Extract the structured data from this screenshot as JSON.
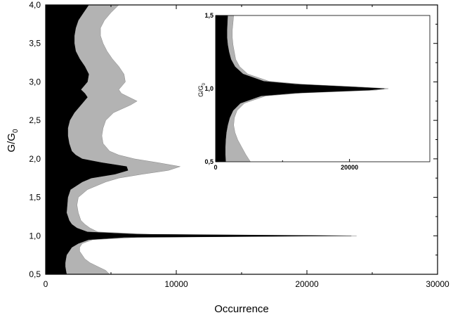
{
  "chart_data": [
    {
      "type": "area",
      "orientation": "horizontal",
      "xlabel": "Occurrence",
      "ylabel": "G/G",
      "ylabel_subscript": "0",
      "xlim": [
        0,
        30000
      ],
      "ylim": [
        0.5,
        4.0
      ],
      "x_ticks": [
        0,
        10000,
        20000,
        30000
      ],
      "x_tick_labels": [
        "0",
        "10000",
        "20000",
        "30000"
      ],
      "y_ticks": [
        0.5,
        1.0,
        1.5,
        2.0,
        2.5,
        3.0,
        3.5,
        4.0
      ],
      "y_tick_labels": [
        "0,5",
        "1,0",
        "1,5",
        "2,0",
        "2,5",
        "3,0",
        "3,5",
        "4,0"
      ],
      "grid": false,
      "colors": {
        "dark": "#000000",
        "light": "#b3b3b3"
      },
      "series": [
        {
          "color": "#b3b3b3",
          "points": [
            [
              0.5,
              4900
            ],
            [
              0.55,
              4600
            ],
            [
              0.6,
              4000
            ],
            [
              0.65,
              3400
            ],
            [
              0.7,
              3000
            ],
            [
              0.75,
              2800
            ],
            [
              0.8,
              2600
            ],
            [
              0.85,
              2600
            ],
            [
              0.9,
              2800
            ],
            [
              0.95,
              3600
            ],
            [
              0.98,
              7000
            ],
            [
              1.0,
              23800
            ],
            [
              1.02,
              8000
            ],
            [
              1.05,
              4000
            ],
            [
              1.1,
              3400
            ],
            [
              1.15,
              3000
            ],
            [
              1.2,
              2700
            ],
            [
              1.3,
              2500
            ],
            [
              1.4,
              2400
            ],
            [
              1.5,
              2500
            ],
            [
              1.6,
              3200
            ],
            [
              1.7,
              4600
            ],
            [
              1.75,
              5600
            ],
            [
              1.8,
              7400
            ],
            [
              1.85,
              9400
            ],
            [
              1.9,
              10300
            ],
            [
              1.95,
              8600
            ],
            [
              2.0,
              6800
            ],
            [
              2.05,
              5600
            ],
            [
              2.1,
              4900
            ],
            [
              2.2,
              4400
            ],
            [
              2.3,
              4300
            ],
            [
              2.4,
              4400
            ],
            [
              2.5,
              4600
            ],
            [
              2.6,
              5200
            ],
            [
              2.7,
              6500
            ],
            [
              2.75,
              7000
            ],
            [
              2.8,
              6400
            ],
            [
              2.85,
              5800
            ],
            [
              2.9,
              5600
            ],
            [
              3.0,
              6100
            ],
            [
              3.1,
              6000
            ],
            [
              3.2,
              5600
            ],
            [
              3.3,
              5100
            ],
            [
              3.4,
              4700
            ],
            [
              3.5,
              4400
            ],
            [
              3.6,
              4200
            ],
            [
              3.7,
              4200
            ],
            [
              3.8,
              4500
            ],
            [
              3.9,
              5000
            ],
            [
              4.0,
              5600
            ]
          ]
        },
        {
          "color": "#000000",
          "points": [
            [
              0.5,
              1600
            ],
            [
              0.55,
              1550
            ],
            [
              0.6,
              1500
            ],
            [
              0.65,
              1500
            ],
            [
              0.7,
              1550
            ],
            [
              0.75,
              1600
            ],
            [
              0.8,
              1800
            ],
            [
              0.85,
              2000
            ],
            [
              0.9,
              2500
            ],
            [
              0.95,
              3300
            ],
            [
              0.98,
              6000
            ],
            [
              1.0,
              23400
            ],
            [
              1.02,
              7000
            ],
            [
              1.05,
              3200
            ],
            [
              1.1,
              2400
            ],
            [
              1.15,
              2000
            ],
            [
              1.2,
              1800
            ],
            [
              1.3,
              1600
            ],
            [
              1.4,
              1650
            ],
            [
              1.5,
              1700
            ],
            [
              1.6,
              1900
            ],
            [
              1.7,
              2800
            ],
            [
              1.75,
              3500
            ],
            [
              1.8,
              5300
            ],
            [
              1.85,
              6300
            ],
            [
              1.9,
              6200
            ],
            [
              1.95,
              4300
            ],
            [
              2.0,
              2800
            ],
            [
              2.05,
              2300
            ],
            [
              2.1,
              2000
            ],
            [
              2.2,
              1800
            ],
            [
              2.3,
              1700
            ],
            [
              2.4,
              1700
            ],
            [
              2.5,
              1850
            ],
            [
              2.6,
              2200
            ],
            [
              2.7,
              2700
            ],
            [
              2.8,
              3200
            ],
            [
              2.85,
              3000
            ],
            [
              2.9,
              2700
            ],
            [
              3.0,
              3200
            ],
            [
              3.1,
              3300
            ],
            [
              3.2,
              3000
            ],
            [
              3.3,
              2600
            ],
            [
              3.4,
              2300
            ],
            [
              3.5,
              2200
            ],
            [
              3.6,
              2200
            ],
            [
              3.7,
              2300
            ],
            [
              3.8,
              2500
            ],
            [
              3.9,
              2900
            ],
            [
              4.0,
              3300
            ]
          ]
        }
      ]
    },
    {
      "type": "area",
      "orientation": "horizontal",
      "role": "inset",
      "ylabel": "G/G",
      "ylabel_subscript": "0",
      "xlim": [
        0,
        32000
      ],
      "ylim": [
        0.5,
        1.5
      ],
      "x_ticks": [
        0,
        20000
      ],
      "x_tick_labels": [
        "0",
        "20000"
      ],
      "y_ticks": [
        0.5,
        1.0,
        1.5
      ],
      "y_tick_labels": [
        "0,5",
        "1,0",
        "1,5"
      ],
      "grid": false,
      "series": [
        {
          "color": "#b3b3b3",
          "points": [
            [
              0.5,
              5200
            ],
            [
              0.55,
              4500
            ],
            [
              0.6,
              3900
            ],
            [
              0.65,
              3300
            ],
            [
              0.7,
              2900
            ],
            [
              0.75,
              2700
            ],
            [
              0.8,
              2800
            ],
            [
              0.85,
              3200
            ],
            [
              0.9,
              4300
            ],
            [
              0.95,
              7500
            ],
            [
              0.97,
              13000
            ],
            [
              0.99,
              24000
            ],
            [
              1.0,
              25800
            ],
            [
              1.01,
              22000
            ],
            [
              1.03,
              13000
            ],
            [
              1.05,
              8000
            ],
            [
              1.1,
              4800
            ],
            [
              1.15,
              3600
            ],
            [
              1.2,
              3000
            ],
            [
              1.25,
              2800
            ],
            [
              1.3,
              2600
            ],
            [
              1.35,
              2500
            ],
            [
              1.4,
              2500
            ],
            [
              1.45,
              2600
            ],
            [
              1.5,
              2700
            ]
          ]
        },
        {
          "color": "#000000",
          "points": [
            [
              0.5,
              1500
            ],
            [
              0.55,
              1450
            ],
            [
              0.6,
              1450
            ],
            [
              0.65,
              1500
            ],
            [
              0.7,
              1600
            ],
            [
              0.75,
              1800
            ],
            [
              0.8,
              2100
            ],
            [
              0.85,
              2600
            ],
            [
              0.9,
              3700
            ],
            [
              0.95,
              6800
            ],
            [
              0.97,
              12000
            ],
            [
              0.99,
              23000
            ],
            [
              1.0,
              25200
            ],
            [
              1.01,
              21000
            ],
            [
              1.03,
              12000
            ],
            [
              1.05,
              7200
            ],
            [
              1.1,
              4100
            ],
            [
              1.15,
              2900
            ],
            [
              1.2,
              2300
            ],
            [
              1.25,
              2000
            ],
            [
              1.3,
              1800
            ],
            [
              1.35,
              1700
            ],
            [
              1.4,
              1700
            ],
            [
              1.45,
              1750
            ],
            [
              1.5,
              1800
            ]
          ]
        }
      ]
    }
  ]
}
